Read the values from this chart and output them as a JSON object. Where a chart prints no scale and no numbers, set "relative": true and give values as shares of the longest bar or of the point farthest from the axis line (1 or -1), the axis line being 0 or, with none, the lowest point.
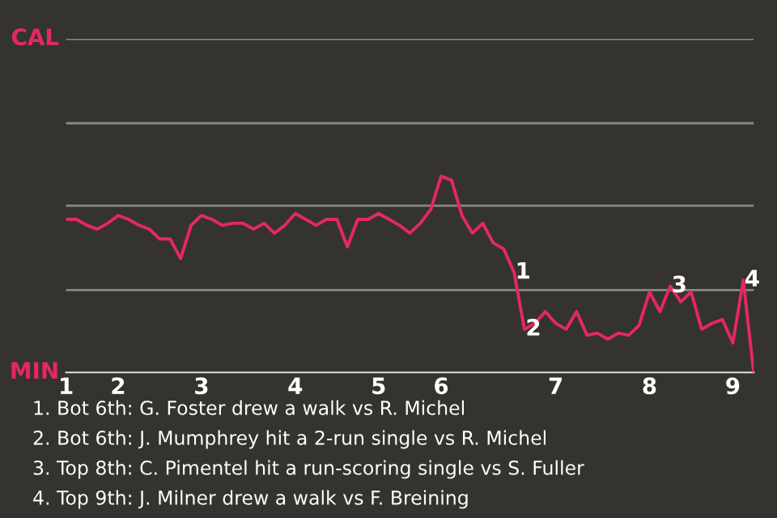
{
  "chart_data": {
    "type": "line",
    "relative": true,
    "categories": [
      "1",
      null,
      null,
      null,
      null,
      "2",
      null,
      null,
      null,
      null,
      null,
      null,
      null,
      "3",
      null,
      null,
      null,
      null,
      null,
      null,
      null,
      null,
      "4",
      null,
      null,
      null,
      null,
      null,
      null,
      null,
      "5",
      null,
      null,
      null,
      null,
      null,
      "6",
      null,
      null,
      null,
      null,
      null,
      null,
      null,
      null,
      null,
      null,
      "7",
      null,
      null,
      null,
      null,
      null,
      null,
      null,
      null,
      "8",
      null,
      null,
      null,
      null,
      null,
      null,
      null,
      "9",
      null,
      null
    ],
    "series": [
      {
        "color": "#e6285e",
        "values": [
          0.78,
          0.78,
          0.75,
          0.73,
          0.76,
          0.8,
          0.78,
          0.75,
          0.73,
          0.68,
          0.68,
          0.58,
          0.75,
          0.8,
          0.78,
          0.75,
          0.76,
          0.76,
          0.73,
          0.76,
          0.71,
          0.75,
          0.81,
          0.78,
          0.75,
          0.78,
          0.78,
          0.64,
          0.78,
          0.78,
          0.81,
          0.78,
          0.75,
          0.71,
          0.76,
          0.83,
          1,
          0.98,
          0.8,
          0.71,
          0.76,
          0.66,
          0.63,
          0.51,
          0.22,
          0.25,
          0.31,
          0.25,
          0.22,
          0.31,
          0.19,
          0.2,
          0.17,
          0.2,
          0.19,
          0.24,
          0.41,
          0.31,
          0.44,
          0.36,
          0.41,
          0.22,
          0.25,
          0.27,
          0.15,
          0.47,
          0
        ]
      }
    ],
    "ref_lines": [
      {
        "axis": "y",
        "value": 0.42,
        "color": "#8a8886"
      },
      {
        "axis": "y",
        "value": 0.85,
        "color": "#8a8886"
      },
      {
        "axis": "y",
        "value": 1.27,
        "color": "#8a8886"
      },
      {
        "axis": "y",
        "value": 1.7,
        "color": "#8a8886"
      }
    ],
    "marker": "none",
    "line_style": "solid",
    "annotations": [
      "CAL",
      "MIN",
      {
        "text": "1",
        "y": 0.51
      },
      {
        "text": "2",
        "y": 0.22
      },
      {
        "text": "3",
        "y": 0.44
      },
      {
        "text": "4",
        "y": 0.47
      },
      "1. Bot 6th: G. Foster drew a walk vs R. Michel",
      "2. Bot 6th: J. Mumphrey hit a 2-run single vs R. Michel",
      "3. Top 8th: C. Pimentel hit a run-scoring single vs S. Fuller",
      "4. Top 9th: J. Milner drew a walk vs F. Breining"
    ]
  }
}
